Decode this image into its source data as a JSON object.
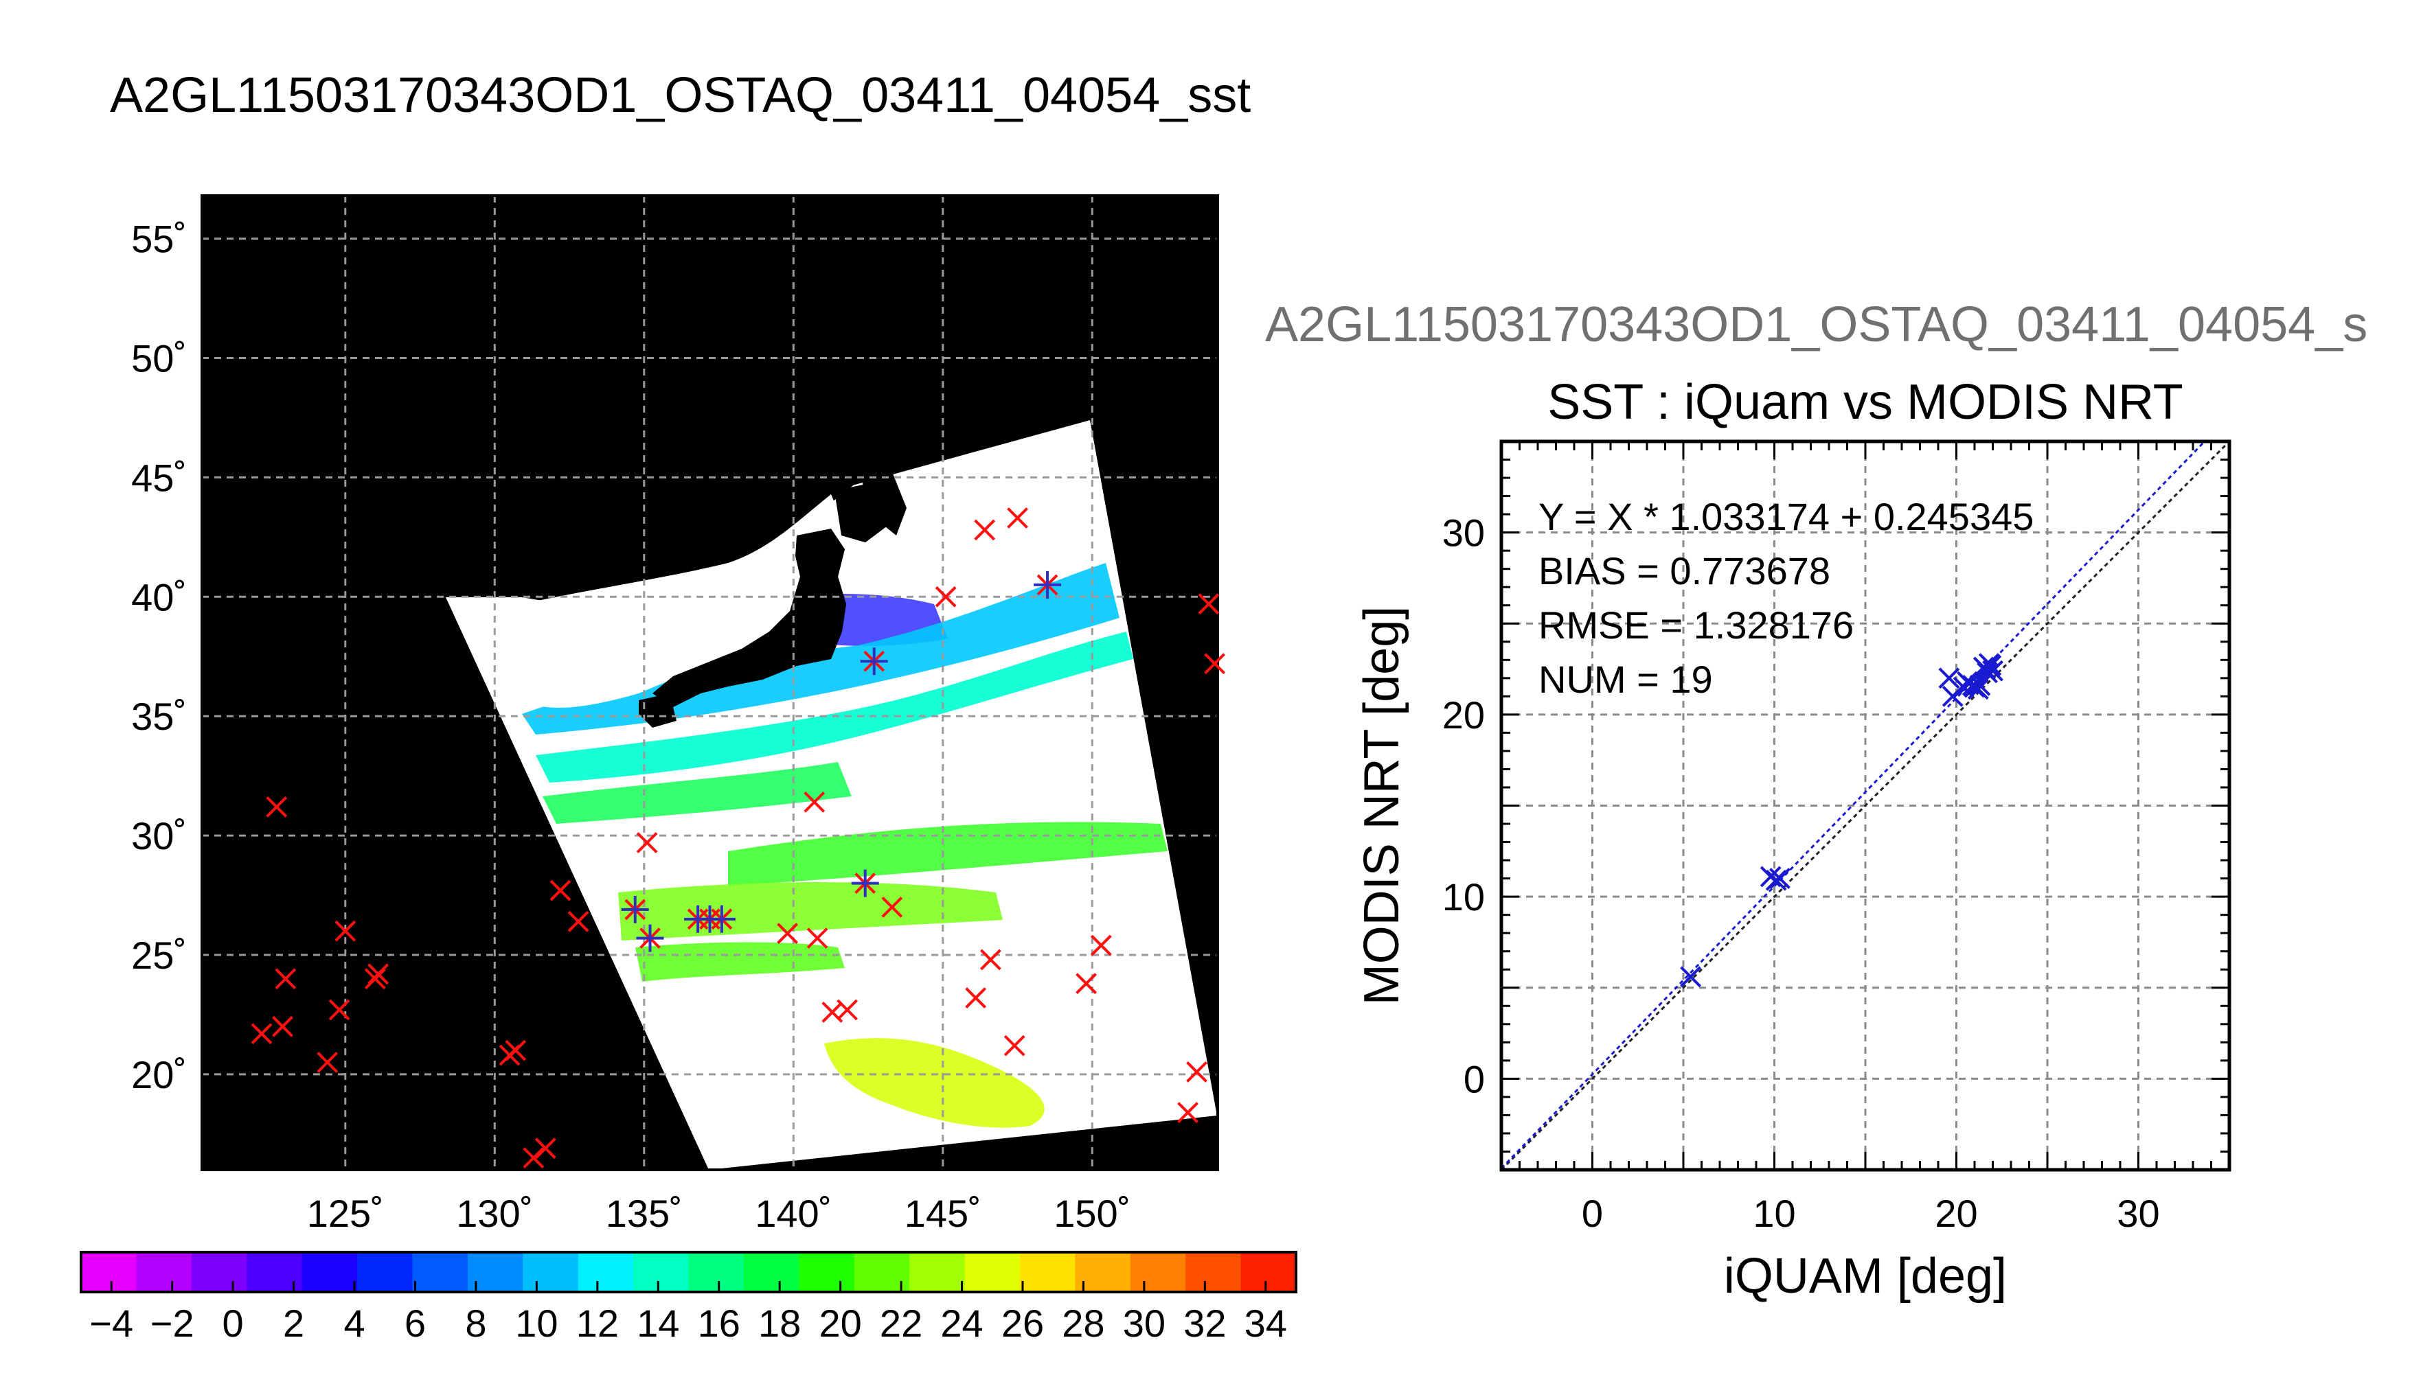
{
  "title": "A2GL11503170343OD1_OSTAQ_03411_04054_sst",
  "right_panel_title": "A2GL11503170343OD1_OSTAQ_03411_04054_s",
  "chart_data": [
    {
      "type": "map",
      "lon_ticks": [
        125,
        130,
        135,
        140,
        145,
        150
      ],
      "lon_tick_labels": [
        "125˚",
        "130˚",
        "135˚",
        "140˚",
        "145˚",
        "150˚"
      ],
      "lat_ticks": [
        20,
        25,
        30,
        35,
        40,
        45,
        50,
        55
      ],
      "lat_tick_labels": [
        "20˚",
        "25˚",
        "30˚",
        "35˚",
        "40˚",
        "45˚",
        "50˚",
        "55˚"
      ],
      "xlim": [
        120.2,
        154.2
      ],
      "ylim": [
        16.0,
        56.8
      ],
      "grid": true,
      "colorbar": {
        "range": [
          -5,
          35
        ],
        "tick_values": [
          -4,
          -2,
          0,
          2,
          4,
          6,
          8,
          10,
          12,
          14,
          16,
          18,
          20,
          22,
          24,
          26,
          28,
          30,
          32,
          34
        ],
        "tick_labels": [
          "−4",
          "−2",
          "0",
          "2",
          "4",
          "6",
          "8",
          "10",
          "12",
          "14",
          "16",
          "18",
          "20",
          "22",
          "24",
          "26",
          "28",
          "30",
          "32",
          "34"
        ],
        "colors": [
          "#e600ff",
          "#b400ff",
          "#8000ff",
          "#4d00ff",
          "#1a00ff",
          "#0028ff",
          "#005aff",
          "#008cff",
          "#00bfff",
          "#00f0ff",
          "#00ffc0",
          "#00ff80",
          "#00ff40",
          "#1eff00",
          "#60ff00",
          "#a0ff00",
          "#e0ff00",
          "#ffe000",
          "#ffb000",
          "#ff8000",
          "#ff5000",
          "#ff2000"
        ]
      },
      "matchups_red": [
        [
          122.7,
          31.2
        ],
        [
          125.0,
          26.0
        ],
        [
          123.0,
          24.0
        ],
        [
          122.2,
          21.7
        ],
        [
          122.9,
          22.0
        ],
        [
          124.8,
          22.7
        ],
        [
          124.4,
          20.5
        ],
        [
          126.0,
          24.0
        ],
        [
          126.1,
          24.2
        ],
        [
          130.5,
          20.8
        ],
        [
          130.7,
          21.0
        ],
        [
          131.3,
          16.5
        ],
        [
          131.7,
          16.9
        ],
        [
          132.2,
          27.7
        ],
        [
          132.8,
          26.4
        ],
        [
          135.1,
          29.7
        ],
        [
          139.8,
          25.9
        ],
        [
          140.8,
          25.7
        ],
        [
          140.7,
          31.4
        ],
        [
          141.3,
          22.6
        ],
        [
          141.8,
          22.7
        ],
        [
          143.3,
          27.0
        ],
        [
          145.1,
          40.0
        ],
        [
          146.4,
          42.8
        ],
        [
          147.5,
          43.3
        ],
        [
          146.1,
          23.2
        ],
        [
          146.6,
          24.8
        ],
        [
          147.4,
          21.2
        ],
        [
          149.8,
          23.8
        ],
        [
          150.3,
          25.4
        ],
        [
          153.2,
          18.4
        ],
        [
          153.5,
          20.1
        ],
        [
          153.9,
          39.7
        ],
        [
          154.1,
          37.2
        ]
      ],
      "matchups_blue": [
        [
          134.7,
          26.9
        ],
        [
          135.2,
          25.7
        ],
        [
          136.8,
          26.5
        ],
        [
          137.2,
          26.5
        ],
        [
          137.6,
          26.5
        ],
        [
          142.4,
          28.0
        ],
        [
          142.7,
          37.3
        ],
        [
          148.5,
          40.5
        ]
      ]
    },
    {
      "type": "scatter",
      "title": "SST : iQuam vs MODIS NRT",
      "xlabel": "iQUAM [deg]",
      "ylabel": "MODIS NRT [deg]",
      "xlim": [
        -5,
        35
      ],
      "ylim": [
        -5,
        35
      ],
      "x_ticks": [
        0,
        10,
        20,
        30
      ],
      "y_ticks": [
        0,
        10,
        20,
        30
      ],
      "grid": true,
      "stats": [
        "Y = X * 1.033174 + 0.245345",
        "BIAS = 0.773678",
        "RMSE = 1.328176",
        "NUM = 19"
      ],
      "fit": {
        "slope": 1.033174,
        "intercept": 0.245345
      },
      "points": [
        [
          5.4,
          5.6
        ],
        [
          9.8,
          11.1
        ],
        [
          10.1,
          10.9
        ],
        [
          10.3,
          11.0
        ],
        [
          19.6,
          22.0
        ],
        [
          19.8,
          21.0
        ],
        [
          20.4,
          21.5
        ],
        [
          20.7,
          21.7
        ],
        [
          21.0,
          21.5
        ],
        [
          21.3,
          21.6
        ],
        [
          21.6,
          22.5
        ],
        [
          21.8,
          22.8
        ],
        [
          22.0,
          22.4
        ],
        [
          21.9,
          22.7
        ],
        [
          20.9,
          21.6
        ],
        [
          21.2,
          21.4
        ],
        [
          21.5,
          22.6
        ],
        [
          20.6,
          21.8
        ],
        [
          21.7,
          22.3
        ]
      ]
    }
  ]
}
